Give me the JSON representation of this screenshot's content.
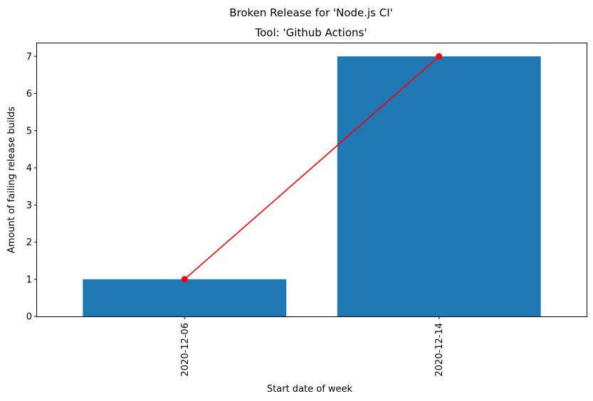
{
  "chart_data": {
    "type": "bar",
    "title": "Broken Release for 'Node.js CI'",
    "subtitle": "Tool: 'Github Actions'",
    "xlabel": "Start date of week",
    "ylabel": "Amount of failing release builds",
    "categories": [
      "2020-12-06",
      "2020-12-14"
    ],
    "values": [
      1,
      7
    ],
    "line_values": [
      1,
      7
    ],
    "ylim": [
      0,
      7.35
    ],
    "yticks": [
      0,
      1,
      2,
      3,
      4,
      5,
      6,
      7
    ],
    "grid": false,
    "legend": "none",
    "bar_color": "#1f77b4",
    "line_color": "#ff0000"
  }
}
